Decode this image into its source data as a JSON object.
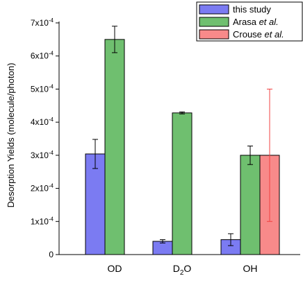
{
  "chart_data": {
    "type": "bar",
    "categories": [
      {
        "main": "OD",
        "sub": "",
        "tail": ""
      },
      {
        "main": "D",
        "sub": "2",
        "tail": "O"
      },
      {
        "main": "OH",
        "sub": "",
        "tail": ""
      }
    ],
    "ylabel": "Desorption Yields (molecule/photon)",
    "xlabel": "",
    "ylim": [
      0,
      0.0007
    ],
    "yticks": [
      {
        "value": 0,
        "mant": "0",
        "exp": ""
      },
      {
        "value": 0.0001,
        "mant": "1x10",
        "exp": "-4"
      },
      {
        "value": 0.0002,
        "mant": "2x10",
        "exp": "-4"
      },
      {
        "value": 0.0003,
        "mant": "3x10",
        "exp": "-4"
      },
      {
        "value": 0.0004,
        "mant": "4x10",
        "exp": "-4"
      },
      {
        "value": 0.0005,
        "mant": "5x10",
        "exp": "-4"
      },
      {
        "value": 0.0006,
        "mant": "6x10",
        "exp": "-4"
      },
      {
        "value": 0.0007,
        "mant": "7x10",
        "exp": "-4"
      }
    ],
    "legend_position": "top-right",
    "series": [
      {
        "id": "this-study",
        "legend": {
          "plain": "this study",
          "italic": ""
        },
        "color": "#7b7bf2",
        "error_color": "#000000",
        "values": [
          0.000304,
          4e-05,
          4.5e-05
        ],
        "errors": [
          4.4e-05,
          5e-06,
          1.8e-05
        ]
      },
      {
        "id": "arasa",
        "legend": {
          "plain": "Arasa ",
          "italic": "et al."
        },
        "color": "#6fbf6f",
        "error_color": "#000000",
        "values": [
          0.00065,
          0.000428,
          0.0003
        ],
        "errors": [
          4e-05,
          3e-06,
          2.8e-05
        ]
      },
      {
        "id": "crouse",
        "legend": {
          "plain": "Crouse ",
          "italic": "et al."
        },
        "color": "#f88a8a",
        "error_color": "#f04040",
        "values": [
          null,
          null,
          0.0003
        ],
        "errors": [
          null,
          null,
          0.0002
        ]
      }
    ]
  }
}
